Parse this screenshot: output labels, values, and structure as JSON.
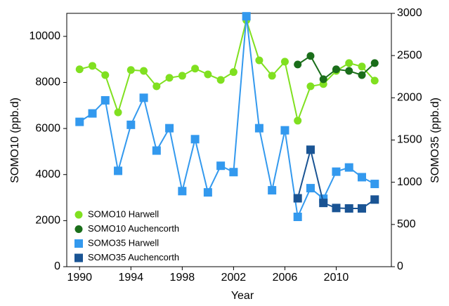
{
  "chart_data": {
    "type": "line",
    "x_label": "Year",
    "y_label": "SOMO10 (ppb.d)",
    "y2_label": "SOMO35 (ppb.d)",
    "x": [
      1990,
      1991,
      1992,
      1993,
      1994,
      1995,
      1996,
      1997,
      1998,
      1999,
      2000,
      2001,
      2002,
      2003,
      2004,
      2005,
      2006,
      2007,
      2008,
      2009,
      2010,
      2011,
      2012,
      2013
    ],
    "xlim": [
      1989,
      2014.3
    ],
    "xticks": [
      1990,
      1994,
      1998,
      2002,
      2006,
      2010
    ],
    "ylim": [
      0,
      11000
    ],
    "yticks": [
      0,
      2000,
      4000,
      6000,
      8000,
      10000
    ],
    "y2lim": [
      0,
      3000
    ],
    "y2ticks": [
      0,
      500,
      1000,
      1500,
      2000,
      2500,
      3000
    ],
    "legend": "lower-left",
    "series": [
      {
        "name": "SOMO10 Harwell",
        "color": "#80e020",
        "marker": "circle",
        "values": [
          8570,
          8720,
          8320,
          6700,
          8540,
          8500,
          7830,
          8200,
          8290,
          8600,
          8350,
          8110,
          8450,
          10700,
          8960,
          8290,
          8900,
          6340,
          7830,
          7930,
          8500,
          8840,
          8690,
          8080
        ]
      },
      {
        "name": "SOMO10 Auchencorth",
        "color": "#1a6e1a",
        "marker": "circle",
        "values": [
          null,
          null,
          null,
          null,
          null,
          null,
          null,
          null,
          null,
          null,
          null,
          null,
          null,
          null,
          null,
          null,
          null,
          8780,
          9150,
          8140,
          8570,
          8500,
          8320,
          8840
        ]
      },
      {
        "name": "SOMO35 Harwell",
        "color": "#3399ee",
        "marker": "square",
        "axis": "y2",
        "values": [
          1715,
          1815,
          1970,
          1135,
          1680,
          2000,
          1375,
          1640,
          895,
          1510,
          880,
          1195,
          1120,
          2965,
          1640,
          905,
          1615,
          590,
          930,
          805,
          1125,
          1175,
          1060,
          980
        ]
      },
      {
        "name": "SOMO35 Auchencorth",
        "color": "#1a5494",
        "marker": "square",
        "axis": "y2",
        "values": [
          null,
          null,
          null,
          null,
          null,
          null,
          null,
          null,
          null,
          null,
          null,
          null,
          null,
          null,
          null,
          null,
          null,
          810,
          1385,
          755,
          695,
          690,
          690,
          795
        ]
      }
    ]
  }
}
